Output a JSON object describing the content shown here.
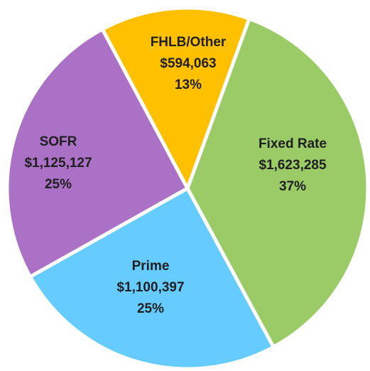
{
  "chart_data": {
    "type": "pie",
    "categories": [
      "Fixed Rate",
      "Prime",
      "SOFR",
      "FHLB/Other"
    ],
    "values": [
      1623285,
      1100397,
      1125127,
      594063
    ],
    "value_labels": [
      "$1,623,285",
      "$1,100,397",
      "$1,125,127",
      "$594,063"
    ],
    "shares": [
      37,
      25,
      25,
      13
    ],
    "share_labels": [
      "37%",
      "25%",
      "25%",
      "13%"
    ],
    "colors": [
      "#9bcb66",
      "#66ccff",
      "#aa71c6",
      "#ffc000"
    ]
  }
}
